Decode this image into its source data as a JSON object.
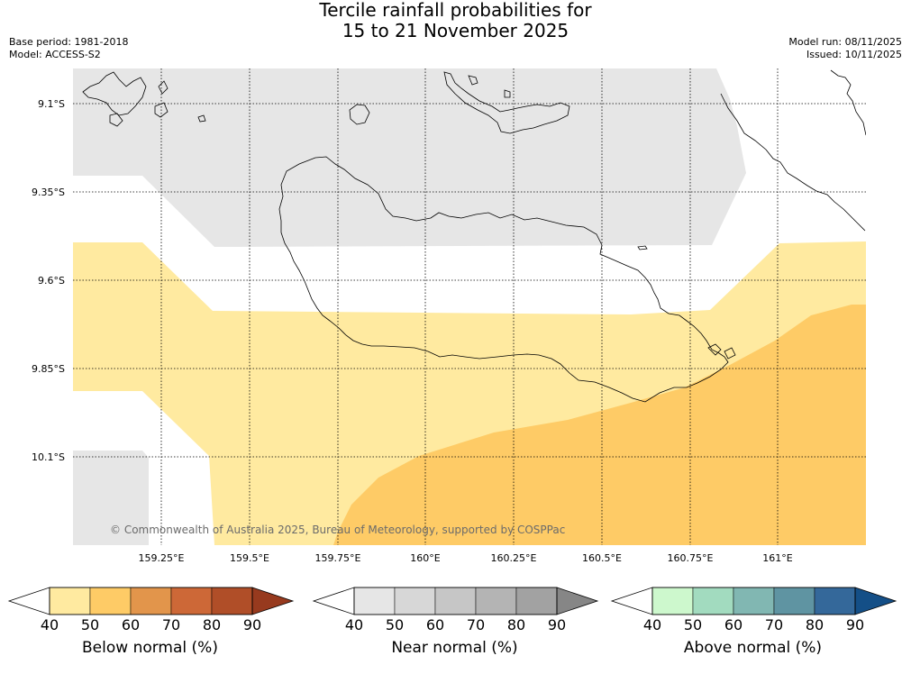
{
  "title": {
    "line1": "Tercile rainfall probabilities for",
    "line2": "15 to 21 November 2025"
  },
  "meta": {
    "base_period": "Base period: 1981-2018",
    "model": "Model: ACCESS-S2",
    "model_run": "Model run: 08/11/2025",
    "issued": "Issued: 10/11/2025"
  },
  "copyright": "© Commonwealth of Australia 2025, Bureau of Meteorology, supported by COSPPac",
  "map": {
    "lat_ticks": [
      "9.1°S",
      "9.35°S",
      "9.6°S",
      "9.85°S",
      "10.1°S"
    ],
    "lon_ticks": [
      "159.25°E",
      "159.5°E",
      "159.75°E",
      "160°E",
      "160.25°E",
      "160.5°E",
      "160.75°E",
      "161°E"
    ]
  },
  "colors": {
    "land_line": "#000000",
    "grid_line": "#000000",
    "near_normal_40": "#e6e6e6",
    "below_normal_40": "#ffeaa0",
    "below_normal_50": "#fecb66"
  },
  "colorbars": [
    {
      "label": "Below normal (%)",
      "ticks": [
        "40",
        "50",
        "60",
        "70",
        "80",
        "90"
      ],
      "colors": [
        "#ffeaa0",
        "#fecb66",
        "#e2954b",
        "#cd6837",
        "#b04e28",
        "#973a1e"
      ]
    },
    {
      "label": "Near normal (%)",
      "ticks": [
        "40",
        "50",
        "60",
        "70",
        "80",
        "90"
      ],
      "colors": [
        "#e6e6e6",
        "#d7d7d7",
        "#c6c6c6",
        "#b4b4b4",
        "#a2a2a2",
        "#868686"
      ]
    },
    {
      "label": "Above normal (%)",
      "ticks": [
        "40",
        "50",
        "60",
        "70",
        "80",
        "90"
      ],
      "colors": [
        "#cdf8cd",
        "#a2dbbf",
        "#81b7b2",
        "#5f94a2",
        "#34689a",
        "#144f87"
      ]
    }
  ]
}
